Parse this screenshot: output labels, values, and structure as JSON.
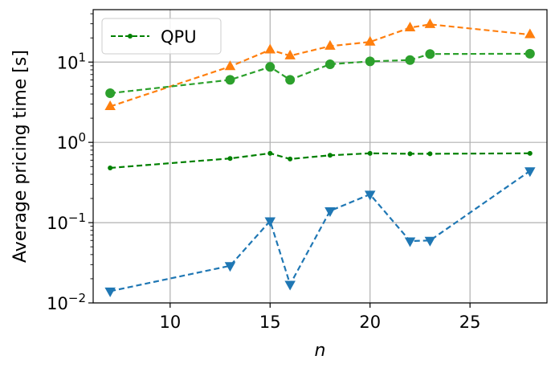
{
  "chart_data": {
    "type": "line",
    "title": "",
    "xlabel": "n",
    "ylabel": "Average pricing time [s]",
    "xlim": [
      6.15,
      28.85
    ],
    "ylim": [
      0.01,
      45
    ],
    "yscale": "log",
    "grid": true,
    "xticks": [
      10,
      15,
      20,
      25
    ],
    "xtick_labels": [
      "10",
      "15",
      "20",
      "25"
    ],
    "yticks": [
      0.01,
      0.1,
      1,
      10
    ],
    "ytick_labels": [
      {
        "base": "10",
        "exp": "−2"
      },
      {
        "base": "10",
        "exp": "−1"
      },
      {
        "base": "10",
        "exp": "0"
      },
      {
        "base": "10",
        "exp": "1"
      }
    ],
    "legend": {
      "position": "top-left",
      "entries": [
        "QPU"
      ]
    },
    "series": [
      {
        "name": "",
        "color": "#1f77b4",
        "marker": "triangle-down",
        "linestyle": "dashed",
        "x": [
          7,
          13,
          15,
          16,
          18,
          20,
          22,
          23,
          28
        ],
        "y": [
          0.014,
          0.029,
          0.105,
          0.017,
          0.14,
          0.225,
          0.059,
          0.06,
          0.44
        ]
      },
      {
        "name": "",
        "color": "#ff7f0e",
        "marker": "triangle-up",
        "linestyle": "dashed",
        "x": [
          7,
          13,
          15,
          16,
          18,
          20,
          22,
          23,
          28
        ],
        "y": [
          2.8,
          8.8,
          14.2,
          12.0,
          15.8,
          17.8,
          26.8,
          29.5,
          22.0
        ]
      },
      {
        "name": "",
        "color": "#2ca02c",
        "marker": "circle",
        "linestyle": "dashed",
        "x": [
          7,
          13,
          15,
          16,
          18,
          20,
          22,
          23,
          28
        ],
        "y": [
          4.1,
          6.0,
          8.7,
          6.0,
          9.4,
          10.2,
          10.6,
          12.6,
          12.7
        ]
      },
      {
        "name": "QPU",
        "color": "#008000",
        "marker": "small-dot",
        "linestyle": "dashed",
        "x": [
          7,
          13,
          15,
          16,
          18,
          20,
          22,
          23,
          28
        ],
        "y": [
          0.48,
          0.63,
          0.73,
          0.62,
          0.69,
          0.73,
          0.72,
          0.72,
          0.73
        ]
      }
    ]
  }
}
